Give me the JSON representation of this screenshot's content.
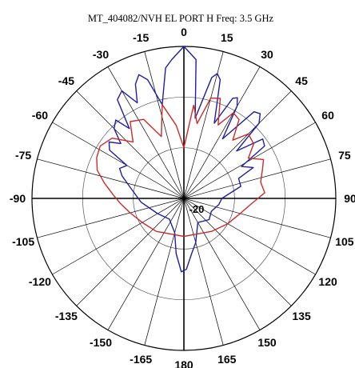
{
  "chart_data": {
    "type": "polar",
    "title": "MT_404082/NVH EL   PORT H  Freq:  3.5 GHz",
    "angular_tick_labels": [
      "0",
      "15",
      "30",
      "45",
      "60",
      "75",
      "90",
      "105",
      "120",
      "135",
      "150",
      "165",
      "180",
      "-165",
      "-150",
      "-135",
      "-120",
      "-105",
      "-90",
      "-75",
      "-60",
      "-45",
      "-30",
      "-15"
    ],
    "angular_tick_step_deg": 15,
    "radial_axis": {
      "label": "-20",
      "label_value": -20,
      "rings": [
        0,
        -10,
        -20,
        -30
      ]
    },
    "grid": true,
    "series": [
      {
        "color": "#1f1fa0",
        "values": [
          [
            0,
            0.0
          ],
          [
            5,
            -2.5
          ],
          [
            8,
            -14.0
          ],
          [
            13,
            -5.5
          ],
          [
            15,
            -4.5
          ],
          [
            17,
            -5.5
          ],
          [
            22,
            -14.0
          ],
          [
            26,
            -8.0
          ],
          [
            28,
            -7.5
          ],
          [
            30,
            -9.0
          ],
          [
            33,
            -16.0
          ],
          [
            39,
            -8.0
          ],
          [
            42,
            -7.5
          ],
          [
            45,
            -9.0
          ],
          [
            48,
            -16.0
          ],
          [
            53,
            -10.5
          ],
          [
            57,
            -11.0
          ],
          [
            61,
            -17.0
          ],
          [
            66,
            -15.0
          ],
          [
            70,
            -18.5
          ],
          [
            78,
            -18.5
          ],
          [
            90,
            -22.5
          ],
          [
            100,
            -23.0
          ],
          [
            115,
            -24.0
          ],
          [
            130,
            -23.5
          ],
          [
            150,
            -24.5
          ],
          [
            165,
            -21.0
          ],
          [
            172,
            -19.0
          ],
          [
            178,
            -16.0
          ],
          [
            182,
            -15.5
          ],
          [
            188,
            -19.0
          ],
          [
            195,
            -23.0
          ],
          [
            215,
            -25.0
          ],
          [
            240,
            -24.0
          ],
          [
            265,
            -21.5
          ],
          [
            280,
            -19.5
          ],
          [
            290,
            -17.0
          ],
          [
            295,
            -16.0
          ],
          [
            300,
            -17.0
          ],
          [
            303,
            -12.5
          ],
          [
            307,
            -11.5
          ],
          [
            311,
            -13.5
          ],
          [
            315,
            -10.5
          ],
          [
            319,
            -9.5
          ],
          [
            322,
            -12.5
          ],
          [
            326,
            -6.5
          ],
          [
            330,
            -5.5
          ],
          [
            334,
            -9.0
          ],
          [
            337,
            -5.5
          ],
          [
            340,
            -4.0
          ],
          [
            343,
            -5.5
          ],
          [
            347,
            -11.0
          ],
          [
            352,
            -4.0
          ],
          [
            355,
            -2.5
          ],
          [
            360,
            0.0
          ]
        ]
      },
      {
        "color": "#cc2a2a",
        "values": [
          [
            0,
            -20.0
          ],
          [
            6,
            -11.5
          ],
          [
            10,
            -15.0
          ],
          [
            15,
            -9.5
          ],
          [
            20,
            -9.0
          ],
          [
            25,
            -14.0
          ],
          [
            30,
            -10.5
          ],
          [
            35,
            -11.0
          ],
          [
            40,
            -15.0
          ],
          [
            45,
            -12.0
          ],
          [
            52,
            -12.5
          ],
          [
            58,
            -15.0
          ],
          [
            64,
            -12.5
          ],
          [
            70,
            -13.5
          ],
          [
            78,
            -14.5
          ],
          [
            86,
            -14.0
          ],
          [
            94,
            -16.5
          ],
          [
            105,
            -18.5
          ],
          [
            120,
            -20.0
          ],
          [
            140,
            -21.5
          ],
          [
            160,
            -22.5
          ],
          [
            180,
            -22.5
          ],
          [
            200,
            -22.5
          ],
          [
            220,
            -21.5
          ],
          [
            240,
            -20.5
          ],
          [
            255,
            -19.0
          ],
          [
            265,
            -17.5
          ],
          [
            273,
            -16.0
          ],
          [
            281,
            -14.0
          ],
          [
            288,
            -12.0
          ],
          [
            295,
            -11.0
          ],
          [
            302,
            -10.5
          ],
          [
            310,
            -11.5
          ],
          [
            318,
            -15.0
          ],
          [
            325,
            -11.5
          ],
          [
            333,
            -12.5
          ],
          [
            340,
            -17.0
          ],
          [
            347,
            -11.0
          ],
          [
            354,
            -15.5
          ],
          [
            360,
            -20.0
          ]
        ]
      }
    ]
  }
}
